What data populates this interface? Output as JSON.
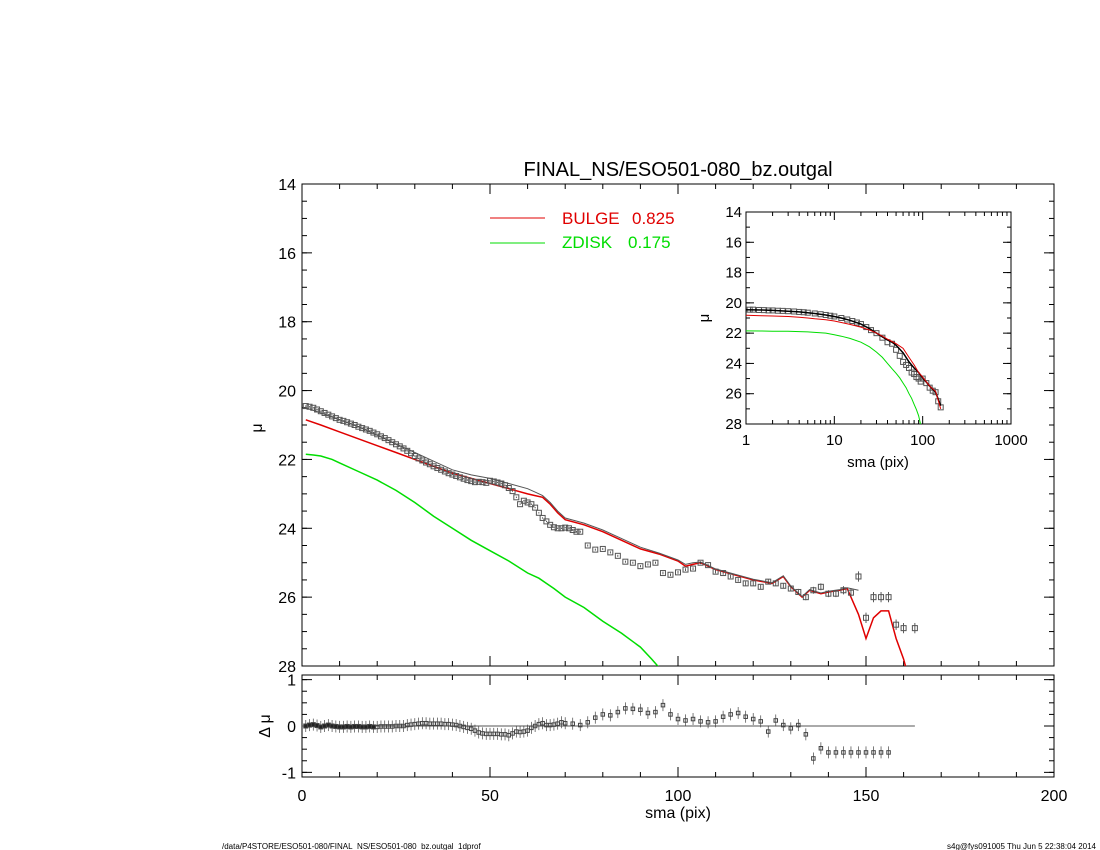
{
  "page": {
    "title": "FINAL_NS/ESO501-080_bz.outgal",
    "footer_left": "/data/P4STORE/ESO501-080/FINAL_NS/ESO501-080_bz.outgal_1dprof",
    "footer_right": "s4g@fys091005  Thu Jun  5 22:38:04 2014"
  },
  "colors": {
    "bulge": "#e00000",
    "zdisk": "#00dd00",
    "data": "#555555",
    "model": "#000000"
  },
  "chart_data": [
    {
      "id": "main",
      "type": "line",
      "title": "FINAL_NS/ESO501-080_bz.outgal",
      "ylabel": "μ",
      "xlim": [
        0,
        200
      ],
      "ylim": [
        28,
        14
      ],
      "y_inverted": true,
      "yticks": [
        14,
        16,
        18,
        20,
        22,
        24,
        26,
        28
      ],
      "legend": [
        {
          "name": "BULGE",
          "value": "0.825",
          "color": "#e00000"
        },
        {
          "name": "ZDISK",
          "value": "0.175",
          "color": "#00dd00"
        }
      ],
      "legend_position": "top-center",
      "observed": {
        "x": [
          1,
          2,
          3,
          4,
          5,
          6,
          7,
          8,
          9,
          10,
          11,
          12,
          13,
          14,
          15,
          16,
          17,
          18,
          19,
          20,
          21,
          22,
          23,
          24,
          25,
          26,
          27,
          28,
          29,
          30,
          31,
          32,
          33,
          34,
          35,
          36,
          37,
          38,
          39,
          40,
          41,
          42,
          43,
          44,
          45,
          46,
          47,
          48,
          49,
          50,
          51,
          52,
          53,
          54,
          55,
          56,
          57,
          58,
          59,
          60,
          61,
          62,
          63,
          64,
          65,
          66,
          67,
          68,
          69,
          70,
          71,
          72,
          73,
          74,
          76,
          78,
          80,
          82,
          84,
          86,
          88,
          90,
          92,
          94,
          96,
          98,
          100,
          102,
          104,
          106,
          108,
          110,
          112,
          114,
          116,
          118,
          120,
          122,
          124,
          126,
          128,
          130,
          132,
          134,
          136,
          138,
          140,
          142,
          144,
          146,
          148,
          150,
          152,
          154,
          156,
          158,
          160,
          163
        ],
        "y": [
          20.45,
          20.47,
          20.5,
          20.55,
          20.6,
          20.65,
          20.7,
          20.75,
          20.8,
          20.85,
          20.88,
          20.92,
          20.96,
          21.0,
          21.05,
          21.09,
          21.13,
          21.17,
          21.22,
          21.27,
          21.33,
          21.38,
          21.44,
          21.5,
          21.56,
          21.62,
          21.68,
          21.75,
          21.82,
          21.9,
          21.97,
          22.03,
          22.09,
          22.14,
          22.2,
          22.25,
          22.3,
          22.35,
          22.4,
          22.44,
          22.48,
          22.52,
          22.56,
          22.6,
          22.63,
          22.66,
          22.65,
          22.66,
          22.68,
          22.62,
          22.64,
          22.67,
          22.7,
          22.75,
          22.83,
          22.92,
          23.1,
          23.3,
          23.2,
          23.25,
          23.3,
          23.4,
          23.55,
          23.7,
          23.8,
          23.9,
          23.97,
          24.0,
          24.0,
          23.98,
          24.0,
          24.05,
          24.1,
          24.1,
          24.5,
          24.62,
          24.6,
          24.7,
          24.8,
          24.97,
          25.0,
          25.1,
          25.05,
          25.0,
          25.3,
          25.35,
          25.28,
          25.2,
          25.17,
          25.0,
          25.07,
          25.26,
          25.3,
          25.4,
          25.5,
          25.6,
          25.6,
          25.7,
          25.55,
          25.6,
          25.67,
          25.75,
          25.85,
          26.0,
          25.8,
          25.7,
          25.9,
          25.9,
          25.8,
          25.87,
          25.4,
          26.6,
          26.0,
          26.0,
          26.0,
          26.8,
          26.9,
          26.9
        ],
        "yerr": [
          0.02,
          0.02,
          0.02,
          0.02,
          0.02,
          0.02,
          0.02,
          0.02,
          0.02,
          0.02,
          0.02,
          0.02,
          0.02,
          0.02,
          0.02,
          0.02,
          0.02,
          0.02,
          0.02,
          0.02,
          0.02,
          0.02,
          0.02,
          0.02,
          0.02,
          0.02,
          0.02,
          0.02,
          0.02,
          0.02,
          0.02,
          0.02,
          0.02,
          0.02,
          0.02,
          0.02,
          0.02,
          0.02,
          0.02,
          0.02,
          0.02,
          0.02,
          0.02,
          0.02,
          0.02,
          0.02,
          0.02,
          0.02,
          0.02,
          0.02,
          0.02,
          0.02,
          0.02,
          0.02,
          0.02,
          0.02,
          0.02,
          0.02,
          0.02,
          0.02,
          0.02,
          0.02,
          0.02,
          0.02,
          0.02,
          0.02,
          0.02,
          0.02,
          0.02,
          0.02,
          0.03,
          0.03,
          0.03,
          0.03,
          0.03,
          0.03,
          0.03,
          0.03,
          0.03,
          0.03,
          0.03,
          0.03,
          0.03,
          0.03,
          0.04,
          0.04,
          0.04,
          0.04,
          0.04,
          0.04,
          0.04,
          0.05,
          0.05,
          0.05,
          0.05,
          0.06,
          0.06,
          0.06,
          0.07,
          0.07,
          0.08,
          0.08,
          0.09,
          0.09,
          0.1,
          0.1,
          0.1,
          0.1,
          0.12,
          0.12,
          0.15,
          0.15,
          0.15,
          0.15,
          0.15,
          0.15,
          0.15,
          0.15
        ]
      },
      "series": [
        {
          "name": "BULGE",
          "color": "#e00000",
          "x": [
            1,
            5,
            10,
            15,
            20,
            25,
            30,
            35,
            40,
            45,
            50,
            55,
            60,
            62,
            64,
            66,
            68,
            70,
            75,
            80,
            85,
            90,
            95,
            100,
            102,
            104,
            106,
            108,
            110,
            115,
            120,
            125,
            128,
            130,
            133,
            135,
            138,
            140,
            143,
            145,
            148,
            150,
            152,
            154,
            156,
            158,
            160,
            162
          ],
          "y": [
            20.85,
            21.0,
            21.2,
            21.4,
            21.6,
            21.8,
            22.0,
            22.2,
            22.4,
            22.55,
            22.7,
            22.85,
            23.0,
            23.05,
            23.1,
            23.3,
            23.55,
            23.75,
            23.9,
            24.1,
            24.35,
            24.6,
            24.75,
            24.95,
            25.1,
            25.05,
            25.0,
            25.1,
            25.2,
            25.35,
            25.5,
            25.6,
            25.4,
            25.7,
            26.0,
            25.8,
            25.9,
            25.85,
            25.8,
            25.75,
            26.5,
            27.2,
            26.6,
            26.4,
            26.4,
            27.2,
            27.8,
            28.6
          ]
        },
        {
          "name": "ZDISK",
          "color": "#00dd00",
          "x": [
            1,
            3,
            5,
            8,
            10,
            15,
            20,
            25,
            30,
            35,
            40,
            45,
            50,
            55,
            60,
            63,
            65,
            67,
            70,
            75,
            80,
            85,
            90,
            93,
            95
          ],
          "y": [
            21.85,
            21.87,
            21.9,
            22.0,
            22.1,
            22.35,
            22.6,
            22.9,
            23.25,
            23.65,
            24.0,
            24.35,
            24.65,
            24.95,
            25.3,
            25.45,
            25.6,
            25.75,
            26.0,
            26.3,
            26.7,
            27.05,
            27.45,
            27.8,
            28.05
          ]
        },
        {
          "name": "TOTAL",
          "color": "#555555",
          "x": [
            1,
            5,
            10,
            15,
            20,
            25,
            30,
            35,
            40,
            45,
            50,
            55,
            60,
            62,
            64,
            66,
            68,
            70,
            75,
            80,
            85,
            90,
            95,
            100,
            102,
            104,
            106,
            108,
            110,
            115,
            120,
            125,
            128,
            130,
            133,
            135,
            138,
            140,
            143,
            145,
            148
          ],
          "y": [
            20.5,
            20.65,
            20.85,
            21.05,
            21.3,
            21.55,
            21.8,
            22.05,
            22.3,
            22.45,
            22.55,
            22.7,
            22.85,
            22.95,
            23.05,
            23.25,
            23.5,
            23.7,
            23.85,
            24.05,
            24.3,
            24.55,
            24.72,
            24.92,
            25.05,
            25.0,
            24.98,
            25.08,
            25.18,
            25.33,
            25.48,
            25.58,
            25.38,
            25.68,
            25.98,
            25.78,
            25.88,
            25.83,
            25.78,
            25.73,
            25.8
          ]
        }
      ]
    },
    {
      "id": "residual",
      "type": "scatter",
      "xlabel": "sma (pix)",
      "ylabel": "Δ μ",
      "xlim": [
        0,
        200
      ],
      "ylim": [
        -1.1,
        1.1
      ],
      "xticks": [
        0,
        50,
        100,
        150,
        200
      ],
      "yticks": [
        -1,
        0,
        1
      ],
      "zero_line_range": [
        0,
        163
      ],
      "x": [
        1,
        2,
        3,
        4,
        5,
        6,
        7,
        8,
        9,
        10,
        11,
        12,
        13,
        14,
        15,
        16,
        17,
        18,
        19,
        20,
        21,
        22,
        23,
        24,
        25,
        26,
        27,
        28,
        29,
        30,
        31,
        32,
        33,
        34,
        35,
        36,
        37,
        38,
        39,
        40,
        41,
        42,
        43,
        44,
        45,
        46,
        47,
        48,
        49,
        50,
        51,
        52,
        53,
        54,
        55,
        56,
        57,
        58,
        59,
        60,
        61,
        62,
        63,
        64,
        65,
        66,
        67,
        68,
        69,
        70,
        72,
        74,
        76,
        78,
        80,
        82,
        84,
        86,
        88,
        90,
        92,
        94,
        96,
        98,
        100,
        102,
        104,
        106,
        108,
        110,
        112,
        114,
        116,
        118,
        120,
        122,
        124,
        126,
        128,
        130,
        132,
        134,
        136,
        138,
        140,
        142,
        144,
        146,
        148,
        150,
        152,
        154,
        156
      ],
      "y": [
        0.0,
        0.02,
        0.03,
        0.01,
        -0.02,
        0.0,
        0.02,
        0.0,
        -0.01,
        -0.02,
        -0.02,
        -0.01,
        -0.02,
        -0.01,
        -0.01,
        -0.02,
        -0.02,
        -0.01,
        -0.02,
        -0.02,
        -0.01,
        -0.01,
        -0.01,
        -0.01,
        0.0,
        0.0,
        0.0,
        0.02,
        0.03,
        0.04,
        0.05,
        0.06,
        0.06,
        0.05,
        0.05,
        0.05,
        0.05,
        0.04,
        0.04,
        0.03,
        0.02,
        0.0,
        -0.02,
        -0.04,
        -0.06,
        -0.1,
        -0.14,
        -0.16,
        -0.17,
        -0.17,
        -0.17,
        -0.17,
        -0.18,
        -0.18,
        -0.2,
        -0.16,
        -0.12,
        -0.13,
        -0.12,
        -0.1,
        -0.04,
        0.0,
        0.04,
        0.06,
        0.02,
        0.02,
        0.03,
        0.05,
        0.08,
        0.06,
        0.05,
        0.02,
        0.08,
        0.18,
        0.25,
        0.23,
        0.3,
        0.38,
        0.37,
        0.35,
        0.28,
        0.3,
        0.45,
        0.25,
        0.15,
        0.12,
        0.15,
        0.1,
        0.08,
        0.1,
        0.2,
        0.25,
        0.28,
        0.2,
        0.15,
        0.1,
        -0.12,
        0.12,
        0.02,
        -0.05,
        0.02,
        -0.18,
        -0.7,
        -0.48,
        -0.57,
        -0.57,
        -0.57,
        -0.57,
        -0.57,
        -0.57,
        -0.57,
        -0.57,
        -0.57
      ]
    },
    {
      "id": "inset",
      "type": "line",
      "xlabel": "sma (pix)",
      "ylabel": "μ",
      "x_scale": "log",
      "xlim": [
        1,
        1000
      ],
      "ylim": [
        28,
        14
      ],
      "xtick_labels": [
        "1",
        "10",
        "100",
        "1000"
      ],
      "yticks": [
        14,
        16,
        18,
        20,
        22,
        24,
        26,
        28
      ],
      "observed": {
        "x": [
          1.1,
          1.2,
          1.4,
          1.6,
          1.8,
          2,
          2.3,
          2.6,
          3,
          3.5,
          4,
          4.5,
          5,
          6,
          7,
          8,
          9,
          10,
          12,
          14,
          16,
          18,
          20,
          23,
          26,
          30,
          35,
          40,
          45,
          50,
          55,
          60,
          65,
          70,
          75,
          80,
          85,
          90,
          95,
          100,
          110,
          120,
          130,
          140,
          150,
          160
        ],
        "y": [
          20.45,
          20.45,
          20.47,
          20.48,
          20.5,
          20.5,
          20.52,
          20.53,
          20.55,
          20.57,
          20.6,
          20.62,
          20.65,
          20.7,
          20.75,
          20.8,
          20.85,
          20.9,
          21.0,
          21.1,
          21.2,
          21.3,
          21.4,
          21.6,
          21.8,
          22.0,
          22.3,
          22.6,
          22.7,
          23.1,
          23.5,
          23.9,
          24.1,
          24.3,
          24.6,
          24.7,
          24.9,
          25.0,
          25.2,
          25.0,
          25.3,
          25.6,
          25.8,
          25.9,
          26.5,
          26.9
        ]
      },
      "series": [
        {
          "name": "TOTAL",
          "color": "#000000",
          "x": [
            1,
            1.5,
            2,
            3,
            4,
            5,
            6,
            8,
            10,
            12,
            15,
            20,
            25,
            30,
            35,
            40,
            45,
            50,
            60,
            70,
            80,
            90,
            100,
            120,
            140,
            160
          ],
          "y": [
            20.45,
            20.47,
            20.5,
            20.55,
            20.6,
            20.65,
            20.7,
            20.8,
            20.9,
            21.0,
            21.15,
            21.4,
            21.7,
            22.0,
            22.25,
            22.45,
            22.6,
            22.8,
            23.3,
            23.9,
            24.3,
            24.6,
            24.95,
            25.5,
            25.9,
            26.8
          ]
        },
        {
          "name": "BULGE",
          "color": "#e00000",
          "x": [
            1,
            1.5,
            2,
            3,
            4,
            5,
            6,
            8,
            10,
            12,
            15,
            20,
            25,
            30,
            35,
            40,
            45,
            50,
            60,
            70,
            80,
            90,
            100,
            120,
            140,
            160
          ],
          "y": [
            20.82,
            20.85,
            20.87,
            20.9,
            20.95,
            21.0,
            21.05,
            21.12,
            21.2,
            21.3,
            21.42,
            21.6,
            21.8,
            22.0,
            22.2,
            22.4,
            22.55,
            22.7,
            23.0,
            23.6,
            24.1,
            24.6,
            24.9,
            25.5,
            25.85,
            27.0
          ]
        },
        {
          "name": "ZDISK",
          "color": "#00dd00",
          "x": [
            1,
            1.5,
            2,
            3,
            4,
            5,
            6,
            8,
            10,
            12,
            15,
            20,
            25,
            30,
            35,
            40,
            45,
            50,
            55,
            60,
            65,
            70,
            75,
            80,
            85,
            90,
            95
          ],
          "y": [
            21.85,
            21.86,
            21.87,
            21.88,
            21.9,
            21.92,
            21.95,
            22.0,
            22.1,
            22.2,
            22.35,
            22.6,
            22.9,
            23.25,
            23.6,
            24.0,
            24.35,
            24.65,
            24.95,
            25.3,
            25.6,
            26.0,
            26.3,
            26.7,
            27.05,
            27.45,
            28.05
          ]
        }
      ]
    }
  ]
}
